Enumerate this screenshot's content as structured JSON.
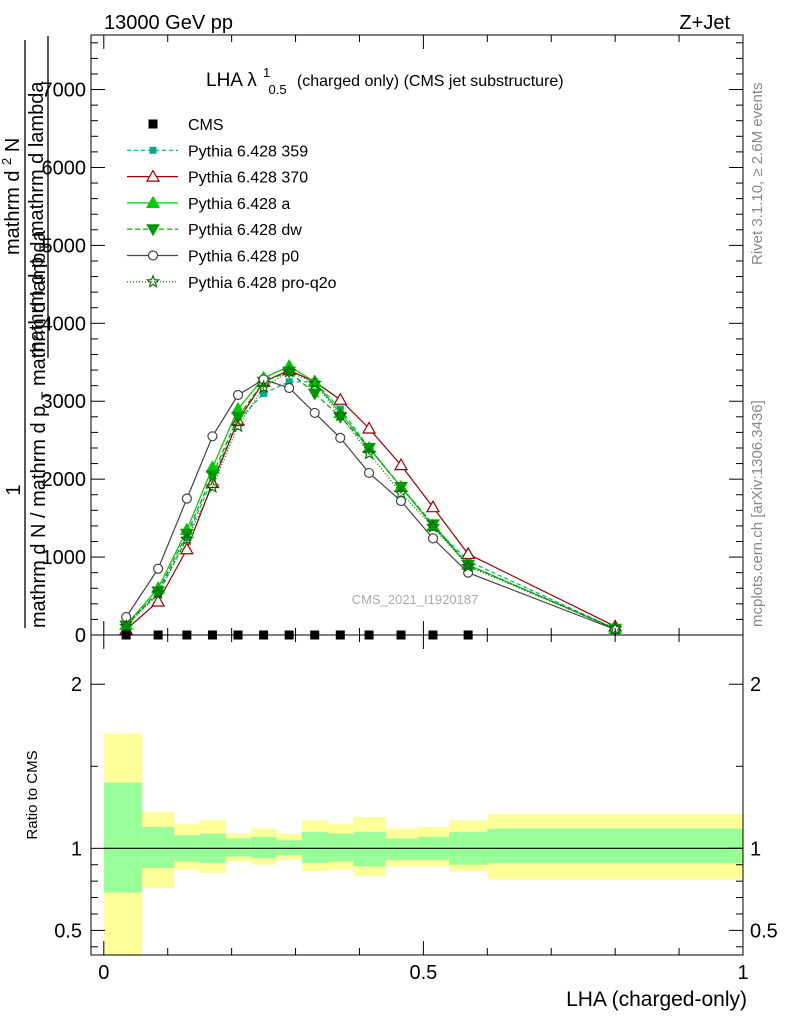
{
  "header": {
    "energy_label": "13000 GeV pp",
    "process_label": "Z+Jet",
    "title_prefix": "LHA λ",
    "title_sup": "1",
    "title_sub": "0.5",
    "title_suffix": "(charged only) (CMS jet substructure)",
    "analysis_id": "CMS_2021_I1920187",
    "side_rivet": "Rivet 3.1.10, ≥ 2.6M events",
    "side_mcplots": "mcplots.cern.ch [arXiv:1306.3436]"
  },
  "chart_data": [
    {
      "type": "line",
      "title": "LHA λ¹₀.₅ (charged only) (CMS jet substructure)",
      "ylabel_parts": [
        "1",
        "mathrm d N / mathrm d p_T mathrm d lambda",
        "mathrm d²N",
        "mathrm d p_T mathrm d lambda"
      ],
      "ylabel_display": {
        "one": "1",
        "den_main": "mathrm d N / mathrm d p",
        "den_sub": "T",
        "den_tail": "mathrm d lambda",
        "frac2_num_main": "mathrm d",
        "frac2_num_sup": "2",
        "frac2_num_tail": "N",
        "frac2_den_main": "mathrm d p",
        "frac2_den_sub": "T",
        "frac2_den_tail": "mathrm d lambda"
      },
      "xlim": [
        -0.02,
        1.0
      ],
      "ylim": [
        0,
        7700
      ],
      "yticks": [
        0,
        1000,
        2000,
        3000,
        4000,
        5000,
        6000,
        7000
      ],
      "ytick_labels": [
        "0",
        "1000",
        "2000",
        "3000",
        "4000",
        "5000",
        "6000",
        "7000"
      ],
      "data_series": {
        "name": "CMS",
        "color": "#000000",
        "x": [
          0.035,
          0.085,
          0.13,
          0.17,
          0.21,
          0.25,
          0.29,
          0.33,
          0.37,
          0.415,
          0.465,
          0.515,
          0.57
        ],
        "y": [
          0,
          0,
          0,
          0,
          0,
          0,
          0,
          0,
          0,
          0,
          0,
          0,
          0
        ]
      },
      "series": [
        {
          "name": "Pythia 6.428 359",
          "color": "#00aa88",
          "dash": "4,3",
          "marker": "square",
          "x": [
            0.035,
            0.085,
            0.13,
            0.17,
            0.21,
            0.25,
            0.29,
            0.33,
            0.37,
            0.415,
            0.465,
            0.515,
            0.57,
            0.8
          ],
          "y": [
            140,
            520,
            1250,
            2000,
            2750,
            3100,
            3250,
            3250,
            2900,
            2400,
            1900,
            1400,
            950,
            80
          ]
        },
        {
          "name": "Pythia 6.428 370",
          "color": "#990000",
          "dash": "",
          "marker": "triangle-open",
          "x": [
            0.035,
            0.085,
            0.13,
            0.17,
            0.21,
            0.25,
            0.29,
            0.33,
            0.37,
            0.415,
            0.465,
            0.515,
            0.57,
            0.8
          ],
          "y": [
            70,
            430,
            1100,
            1950,
            2750,
            3250,
            3400,
            3250,
            3020,
            2650,
            2180,
            1640,
            1040,
            110
          ]
        },
        {
          "name": "Pythia 6.428 a",
          "color": "#00cc00",
          "dash": "",
          "marker": "triangle",
          "x": [
            0.035,
            0.085,
            0.13,
            0.17,
            0.21,
            0.25,
            0.29,
            0.33,
            0.37,
            0.415,
            0.465,
            0.515,
            0.57,
            0.8
          ],
          "y": [
            130,
            600,
            1350,
            2150,
            2900,
            3300,
            3450,
            3250,
            2850,
            2400,
            1900,
            1400,
            900,
            80
          ]
        },
        {
          "name": "Pythia 6.428 dw",
          "color": "#009900",
          "dash": "5,3",
          "marker": "triangle-down",
          "x": [
            0.035,
            0.085,
            0.13,
            0.17,
            0.21,
            0.25,
            0.29,
            0.33,
            0.37,
            0.415,
            0.465,
            0.515,
            0.57,
            0.8
          ],
          "y": [
            120,
            560,
            1300,
            2050,
            2800,
            3250,
            3380,
            3100,
            2800,
            2400,
            1900,
            1420,
            900,
            80
          ]
        },
        {
          "name": "Pythia 6.428 p0",
          "color": "#444444",
          "dash": "",
          "marker": "circle-open",
          "x": [
            0.035,
            0.085,
            0.13,
            0.17,
            0.21,
            0.25,
            0.29,
            0.33,
            0.37,
            0.415,
            0.465,
            0.515,
            0.57,
            0.8
          ],
          "y": [
            230,
            850,
            1750,
            2550,
            3080,
            3280,
            3170,
            2850,
            2530,
            2080,
            1720,
            1240,
            800,
            70
          ]
        },
        {
          "name": "Pythia 6.428 pro-q2o",
          "color": "#006600",
          "dash": "1,2",
          "marker": "star",
          "x": [
            0.035,
            0.085,
            0.13,
            0.17,
            0.21,
            0.25,
            0.29,
            0.33,
            0.37,
            0.415,
            0.465,
            0.515,
            0.57,
            0.8
          ],
          "y": [
            110,
            540,
            1230,
            1900,
            2680,
            3180,
            3380,
            3230,
            2820,
            2330,
            1820,
            1390,
            880,
            80
          ]
        }
      ]
    },
    {
      "type": "area",
      "ylabel": "Ratio to CMS",
      "xlabel": "LHA (charged-only)",
      "xlim": [
        -0.02,
        1.0
      ],
      "ylim": [
        0.35,
        2.3
      ],
      "yticks": [
        0.5,
        1,
        2
      ],
      "ytick_labels": [
        "0.5",
        "1",
        "2"
      ],
      "xticks": [
        0,
        0.5,
        1
      ],
      "xtick_labels": [
        "0",
        "0.5",
        "1"
      ],
      "reference_line": 1,
      "bins": [
        {
          "x0": 0.0,
          "x1": 0.06,
          "y_lo": 0.35,
          "y_hi": 1.7,
          "g_lo": 0.73,
          "g_hi": 1.4
        },
        {
          "x0": 0.06,
          "x1": 0.11,
          "y_lo": 0.76,
          "y_hi": 1.22,
          "g_lo": 0.88,
          "g_hi": 1.13
        },
        {
          "x0": 0.11,
          "x1": 0.15,
          "y_lo": 0.87,
          "y_hi": 1.15,
          "g_lo": 0.92,
          "g_hi": 1.08
        },
        {
          "x0": 0.15,
          "x1": 0.19,
          "y_lo": 0.85,
          "y_hi": 1.17,
          "g_lo": 0.91,
          "g_hi": 1.09
        },
        {
          "x0": 0.19,
          "x1": 0.23,
          "y_lo": 0.92,
          "y_hi": 1.09,
          "g_lo": 0.95,
          "g_hi": 1.06
        },
        {
          "x0": 0.23,
          "x1": 0.27,
          "y_lo": 0.9,
          "y_hi": 1.12,
          "g_lo": 0.94,
          "g_hi": 1.07
        },
        {
          "x0": 0.27,
          "x1": 0.31,
          "y_lo": 0.93,
          "y_hi": 1.09,
          "g_lo": 0.96,
          "g_hi": 1.05
        },
        {
          "x0": 0.31,
          "x1": 0.35,
          "y_lo": 0.86,
          "y_hi": 1.17,
          "g_lo": 0.91,
          "g_hi": 1.1
        },
        {
          "x0": 0.35,
          "x1": 0.39,
          "y_lo": 0.87,
          "y_hi": 1.15,
          "g_lo": 0.92,
          "g_hi": 1.09
        },
        {
          "x0": 0.39,
          "x1": 0.44,
          "y_lo": 0.83,
          "y_hi": 1.19,
          "g_lo": 0.89,
          "g_hi": 1.1
        },
        {
          "x0": 0.44,
          "x1": 0.49,
          "y_lo": 0.89,
          "y_hi": 1.12,
          "g_lo": 0.93,
          "g_hi": 1.06
        },
        {
          "x0": 0.49,
          "x1": 0.54,
          "y_lo": 0.89,
          "y_hi": 1.13,
          "g_lo": 0.93,
          "g_hi": 1.07
        },
        {
          "x0": 0.54,
          "x1": 0.6,
          "y_lo": 0.86,
          "y_hi": 1.17,
          "g_lo": 0.9,
          "g_hi": 1.1
        },
        {
          "x0": 0.6,
          "x1": 1.0,
          "y_lo": 0.81,
          "y_hi": 1.21,
          "g_lo": 0.91,
          "g_hi": 1.12
        }
      ]
    }
  ],
  "colors": {
    "band_yellow": "#ffff99",
    "band_green": "#99ff99",
    "frame": "#000000",
    "side_text": "#888888",
    "analysis_text": "#aaaaaa"
  }
}
